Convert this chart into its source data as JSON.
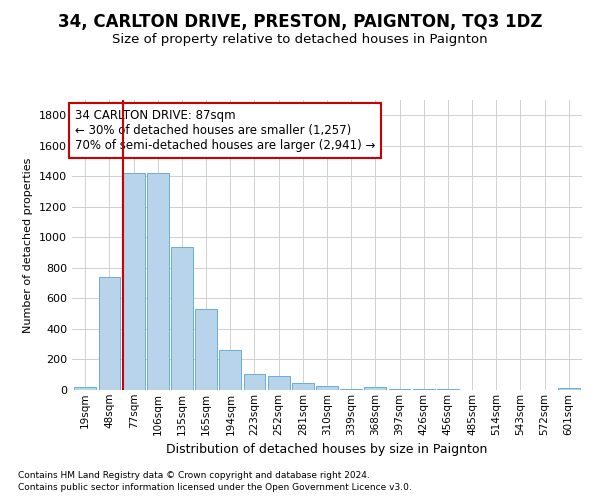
{
  "title1": "34, CARLTON DRIVE, PRESTON, PAIGNTON, TQ3 1DZ",
  "title2": "Size of property relative to detached houses in Paignton",
  "xlabel": "Distribution of detached houses by size in Paignton",
  "ylabel": "Number of detached properties",
  "footnote1": "Contains HM Land Registry data © Crown copyright and database right 2024.",
  "footnote2": "Contains public sector information licensed under the Open Government Licence v3.0.",
  "categories": [
    "19sqm",
    "48sqm",
    "77sqm",
    "106sqm",
    "135sqm",
    "165sqm",
    "194sqm",
    "223sqm",
    "252sqm",
    "281sqm",
    "310sqm",
    "339sqm",
    "368sqm",
    "397sqm",
    "426sqm",
    "456sqm",
    "485sqm",
    "514sqm",
    "543sqm",
    "572sqm",
    "601sqm"
  ],
  "values": [
    22,
    740,
    1420,
    1420,
    935,
    530,
    265,
    105,
    95,
    45,
    28,
    5,
    18,
    5,
    5,
    5,
    2,
    2,
    2,
    2,
    15
  ],
  "bar_color": "#b8d4ea",
  "bar_edge_color": "#6aaed6",
  "grid_color": "#d0d0d0",
  "vline_x": 2.0,
  "vline_color": "#cc0000",
  "annotation_line1": "34 CARLTON DRIVE: 87sqm",
  "annotation_line2": "← 30% of detached houses are smaller (1,257)",
  "annotation_line3": "70% of semi-detached houses are larger (2,941) →",
  "annotation_box_color": "white",
  "annotation_box_edge": "#cc0000",
  "ylim": [
    0,
    1900
  ],
  "yticks": [
    0,
    200,
    400,
    600,
    800,
    1000,
    1200,
    1400,
    1600,
    1800
  ],
  "background_color": "white",
  "title1_fontsize": 12,
  "title2_fontsize": 9.5
}
